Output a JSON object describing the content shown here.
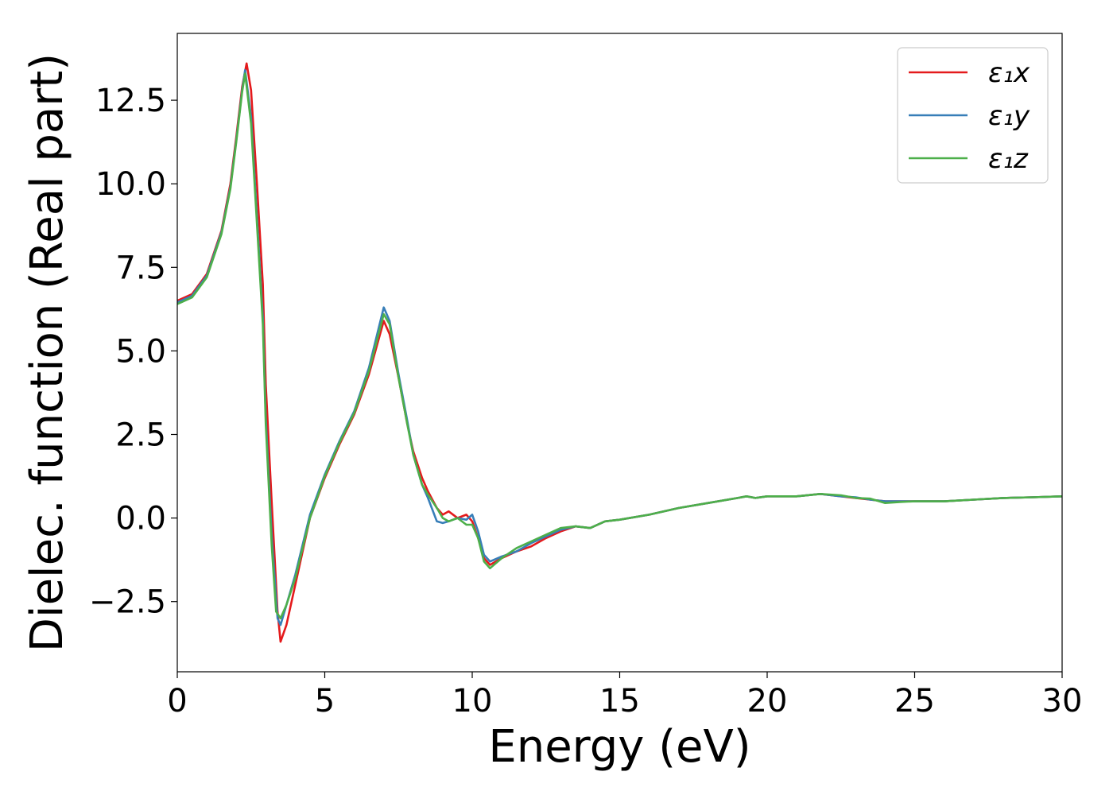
{
  "chart_data": {
    "type": "line",
    "xlabel": "Energy (eV)",
    "ylabel": "Dielec. function (Real part)",
    "xlim": [
      0,
      30
    ],
    "ylim": [
      -4.6,
      14.5
    ],
    "xticks": [
      0,
      5,
      10,
      15,
      20,
      25,
      30
    ],
    "xtick_labels": [
      "0",
      "5",
      "10",
      "15",
      "20",
      "25",
      "30"
    ],
    "yticks": [
      -2.5,
      0.0,
      2.5,
      5.0,
      7.5,
      10.0,
      12.5
    ],
    "ytick_labels": [
      "−2.5",
      "0.0",
      "2.5",
      "5.0",
      "7.5",
      "10.0",
      "12.5"
    ],
    "grid": false,
    "legend_position": "top-right",
    "series": [
      {
        "name": "ε₁x",
        "color": "#e41a1c",
        "x": [
          0,
          0.5,
          1.0,
          1.5,
          1.8,
          2.0,
          2.2,
          2.35,
          2.5,
          2.7,
          2.9,
          3.0,
          3.2,
          3.4,
          3.5,
          3.7,
          4.0,
          4.5,
          5.0,
          5.5,
          6.0,
          6.5,
          7.0,
          7.2,
          7.5,
          7.8,
          8.0,
          8.3,
          8.5,
          8.8,
          9.0,
          9.2,
          9.5,
          9.8,
          10.0,
          10.2,
          10.4,
          10.6,
          11.0,
          11.5,
          12.0,
          12.5,
          13.0,
          13.5,
          14.0,
          14.5,
          15.0,
          16.0,
          17.0,
          18.0,
          19.0,
          19.3,
          19.6,
          20.0,
          21.0,
          21.8,
          22.5,
          23.0,
          23.5,
          24.0,
          24.5,
          25.0,
          26.0,
          27.0,
          28.0,
          29.0,
          30.0
        ],
        "y": [
          6.5,
          6.7,
          7.3,
          8.6,
          10.0,
          11.4,
          12.9,
          13.6,
          12.8,
          10.0,
          7.0,
          4.0,
          0.5,
          -2.8,
          -3.7,
          -3.2,
          -2.0,
          0.0,
          1.2,
          2.2,
          3.1,
          4.3,
          5.9,
          5.5,
          4.2,
          2.8,
          2.0,
          1.2,
          0.8,
          0.3,
          0.1,
          0.2,
          0.0,
          0.1,
          -0.1,
          -0.6,
          -1.2,
          -1.4,
          -1.2,
          -1.0,
          -0.85,
          -0.6,
          -0.4,
          -0.25,
          -0.3,
          -0.1,
          -0.05,
          0.1,
          0.3,
          0.45,
          0.6,
          0.65,
          0.6,
          0.65,
          0.65,
          0.72,
          0.65,
          0.6,
          0.55,
          0.5,
          0.5,
          0.5,
          0.5,
          0.55,
          0.6,
          0.62,
          0.65
        ]
      },
      {
        "name": "ε₁y",
        "color": "#377eb8",
        "x": [
          0,
          0.5,
          1.0,
          1.5,
          1.8,
          2.0,
          2.2,
          2.3,
          2.5,
          2.7,
          2.9,
          3.0,
          3.2,
          3.4,
          3.5,
          3.7,
          4.0,
          4.5,
          5.0,
          5.5,
          6.0,
          6.5,
          7.0,
          7.2,
          7.5,
          7.8,
          8.0,
          8.3,
          8.5,
          8.8,
          9.0,
          9.2,
          9.5,
          9.8,
          10.0,
          10.2,
          10.4,
          10.6,
          11.0,
          11.5,
          12.0,
          12.5,
          13.0,
          13.5,
          14.0,
          14.5,
          15.0,
          16.0,
          17.0,
          18.0,
          19.0,
          19.3,
          19.6,
          20.0,
          21.0,
          21.8,
          22.5,
          23.0,
          23.5,
          24.0,
          24.5,
          25.0,
          26.0,
          27.0,
          28.0,
          29.0,
          30.0
        ],
        "y": [
          6.45,
          6.65,
          7.25,
          8.55,
          9.9,
          11.3,
          12.8,
          13.4,
          12.0,
          9.0,
          6.0,
          3.0,
          -0.5,
          -3.0,
          -3.2,
          -2.6,
          -1.7,
          0.1,
          1.3,
          2.3,
          3.2,
          4.5,
          6.3,
          5.9,
          4.3,
          2.9,
          1.9,
          1.0,
          0.6,
          -0.1,
          -0.15,
          -0.1,
          0.0,
          -0.05,
          0.1,
          -0.4,
          -1.1,
          -1.3,
          -1.15,
          -1.0,
          -0.75,
          -0.55,
          -0.35,
          -0.25,
          -0.3,
          -0.1,
          -0.05,
          0.1,
          0.3,
          0.45,
          0.6,
          0.65,
          0.6,
          0.65,
          0.65,
          0.72,
          0.65,
          0.62,
          0.55,
          0.5,
          0.5,
          0.5,
          0.5,
          0.55,
          0.6,
          0.62,
          0.65
        ]
      },
      {
        "name": "ε₁z",
        "color": "#4daf4a",
        "x": [
          0,
          0.5,
          1.0,
          1.5,
          1.8,
          2.0,
          2.2,
          2.3,
          2.5,
          2.7,
          2.9,
          3.0,
          3.2,
          3.35,
          3.5,
          3.7,
          4.0,
          4.5,
          5.0,
          5.5,
          6.0,
          6.5,
          7.0,
          7.2,
          7.5,
          7.8,
          8.0,
          8.3,
          8.5,
          8.8,
          9.0,
          9.2,
          9.5,
          9.8,
          10.0,
          10.2,
          10.4,
          10.6,
          11.0,
          11.5,
          12.0,
          12.5,
          13.0,
          13.5,
          14.0,
          14.5,
          15.0,
          16.0,
          17.0,
          18.0,
          19.0,
          19.3,
          19.6,
          20.0,
          21.0,
          21.8,
          22.5,
          23.0,
          23.5,
          24.0,
          24.5,
          25.0,
          26.0,
          27.0,
          28.0,
          29.0,
          30.0
        ],
        "y": [
          6.4,
          6.6,
          7.2,
          8.5,
          9.85,
          11.25,
          12.75,
          13.3,
          11.8,
          8.8,
          5.8,
          2.8,
          -0.8,
          -2.8,
          -3.0,
          -2.6,
          -1.8,
          0.0,
          1.25,
          2.25,
          3.15,
          4.4,
          6.1,
          5.8,
          4.2,
          2.8,
          1.9,
          1.0,
          0.7,
          0.3,
          0.0,
          -0.1,
          0.0,
          -0.2,
          -0.2,
          -0.6,
          -1.3,
          -1.5,
          -1.2,
          -0.9,
          -0.7,
          -0.5,
          -0.3,
          -0.25,
          -0.3,
          -0.1,
          -0.05,
          0.1,
          0.3,
          0.45,
          0.6,
          0.65,
          0.6,
          0.65,
          0.65,
          0.72,
          0.68,
          0.6,
          0.58,
          0.45,
          0.48,
          0.5,
          0.5,
          0.55,
          0.6,
          0.62,
          0.65
        ]
      }
    ]
  }
}
